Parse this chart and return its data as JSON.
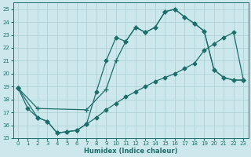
{
  "xlabel": "Humidex (Indice chaleur)",
  "xlim": [
    -0.5,
    23.5
  ],
  "ylim": [
    15,
    25.5
  ],
  "yticks": [
    15,
    16,
    17,
    18,
    19,
    20,
    21,
    22,
    23,
    24,
    25
  ],
  "xticks": [
    0,
    1,
    2,
    3,
    4,
    5,
    6,
    7,
    8,
    9,
    10,
    11,
    12,
    13,
    14,
    15,
    16,
    17,
    18,
    19,
    20,
    21,
    22,
    23
  ],
  "bg_color": "#cce8ec",
  "line_color": "#1e6e6a",
  "grid_color": "#aacfd4",
  "line1_x": [
    0,
    1,
    2,
    3,
    4,
    5,
    6,
    7,
    8,
    9,
    10,
    11,
    12,
    13,
    14,
    15,
    16,
    17,
    18,
    19,
    20,
    21,
    22,
    23
  ],
  "line1_y": [
    18.9,
    17.3,
    16.6,
    16.3,
    15.4,
    15.5,
    15.6,
    16.1,
    18.6,
    21.0,
    22.8,
    22.5,
    23.6,
    23.2,
    23.6,
    24.8,
    25.0,
    24.4,
    23.9,
    23.3,
    20.3,
    19.7,
    19.5,
    19.5
  ],
  "line2_x": [
    0,
    2,
    7,
    9,
    10,
    11,
    12,
    13,
    14,
    15,
    16,
    17,
    18,
    19,
    20,
    21,
    22,
    23
  ],
  "line2_y": [
    18.9,
    17.3,
    17.2,
    18.8,
    21.0,
    22.5,
    23.6,
    23.2,
    23.6,
    24.8,
    25.0,
    24.4,
    23.9,
    23.3,
    20.3,
    19.7,
    19.5,
    19.5
  ],
  "line3_x": [
    0,
    2,
    3,
    4,
    5,
    6,
    7,
    8,
    9,
    10,
    11,
    12,
    13,
    14,
    15,
    16,
    17,
    18,
    19,
    20,
    21,
    22,
    23
  ],
  "line3_y": [
    18.9,
    16.6,
    16.3,
    15.4,
    15.5,
    15.6,
    16.1,
    16.6,
    17.2,
    17.7,
    18.2,
    18.6,
    19.0,
    19.4,
    19.7,
    20.0,
    20.4,
    20.8,
    21.8,
    22.3,
    22.8,
    23.2,
    19.5
  ]
}
